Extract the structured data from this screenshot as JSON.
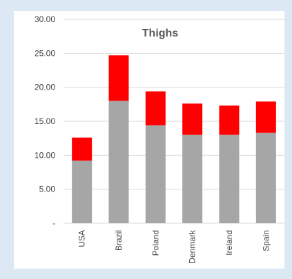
{
  "chart_data": {
    "type": "bar",
    "stacked": true,
    "title": "Thighs",
    "categories": [
      "USA",
      "Brazil",
      "Poland",
      "Denmark",
      "Ireland",
      "Spain"
    ],
    "series": [
      {
        "values": [
          9.2,
          18.0,
          14.4,
          13.0,
          13.0,
          13.3
        ],
        "color": "#a6a6a6"
      },
      {
        "values": [
          3.4,
          6.7,
          5.0,
          4.6,
          4.3,
          4.6
        ],
        "color": "#ff0000"
      }
    ],
    "ylim": [
      0,
      30
    ],
    "yticks": [
      0,
      5,
      10,
      15,
      20,
      25,
      30
    ],
    "ytick_labels": [
      "-",
      "5.00",
      "10.00",
      "15.00",
      "20.00",
      "25.00",
      "30.00"
    ],
    "grid": true,
    "legend": "none"
  },
  "colors": {
    "background": "#dce9f5",
    "panel": "#ffffff",
    "gridline": "#d9d9d9",
    "text": "#404040"
  }
}
